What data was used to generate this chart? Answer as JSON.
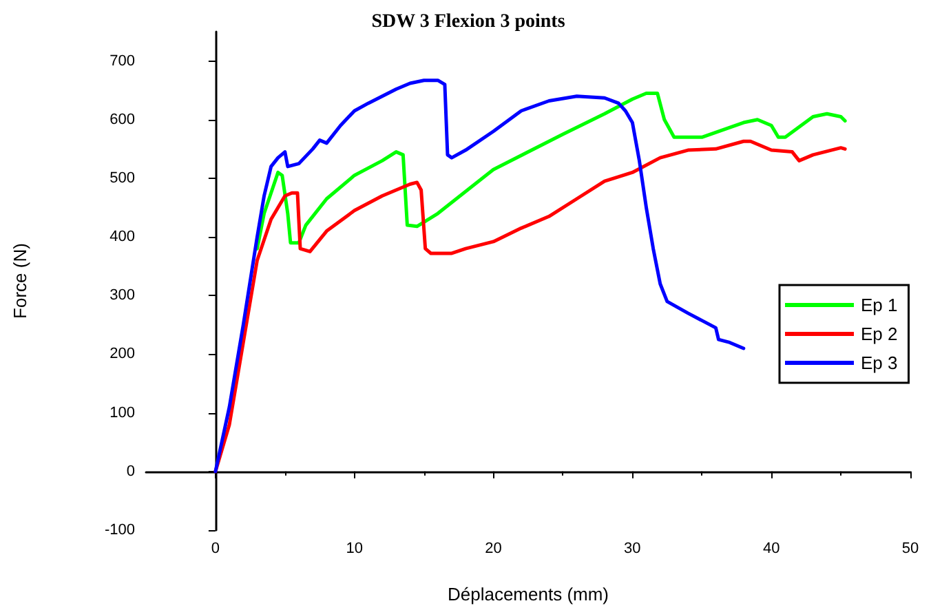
{
  "chart_data": {
    "type": "line",
    "title": "SDW 3 Flexion 3 points",
    "xlabel": "Déplacements (mm)",
    "ylabel": "Force (N)",
    "xlim": [
      -5,
      50
    ],
    "xticks": [
      0,
      10,
      20,
      30,
      40,
      50
    ],
    "ylim": [
      -100,
      750
    ],
    "yticks": [
      -100,
      0,
      100,
      200,
      300,
      400,
      500,
      600,
      700
    ],
    "legend": "right",
    "marker": "none",
    "line_style": "solid",
    "series": [
      {
        "name": "Ep 1",
        "color": "#00ff00",
        "x": [
          3,
          3.5,
          4.5,
          4.8,
          5.2,
          5.4,
          6,
          6.5,
          8,
          10,
          12,
          13,
          13.5,
          13.8,
          14.5,
          16,
          20,
          25,
          28,
          30,
          31,
          31.8,
          32.3,
          33,
          35,
          38,
          39,
          40,
          40.5,
          41,
          43,
          44,
          45,
          45.3
        ],
        "values": [
          380,
          440,
          510,
          505,
          440,
          390,
          390,
          420,
          465,
          505,
          530,
          545,
          540,
          420,
          418,
          440,
          515,
          575,
          610,
          635,
          645,
          645,
          600,
          570,
          570,
          595,
          600,
          590,
          570,
          570,
          605,
          610,
          605,
          598
        ]
      },
      {
        "name": "Ep 2",
        "color": "#ff0000",
        "x": [
          0,
          1,
          2,
          3,
          4,
          5,
          5.5,
          5.9,
          6.1,
          6.8,
          8,
          10,
          12,
          14,
          14.5,
          14.8,
          15.1,
          15.5,
          17,
          18,
          20,
          22,
          24,
          26,
          28,
          30,
          32,
          34,
          36,
          38,
          38.5,
          40,
          41.5,
          42,
          43,
          45,
          45.3
        ],
        "values": [
          0,
          80,
          220,
          360,
          430,
          470,
          475,
          475,
          380,
          375,
          410,
          445,
          470,
          490,
          493,
          480,
          380,
          372,
          372,
          380,
          392,
          415,
          435,
          465,
          495,
          510,
          535,
          548,
          550,
          563,
          563,
          548,
          545,
          530,
          540,
          552,
          550
        ]
      },
      {
        "name": "Ep 3",
        "color": "#0000ff",
        "x": [
          0,
          1,
          2,
          3,
          3.5,
          4,
          4.5,
          5,
          5.2,
          6,
          7,
          7.5,
          8,
          9,
          10,
          11,
          12,
          13,
          14,
          15,
          16,
          16.5,
          16.7,
          17,
          18,
          20,
          22,
          24,
          26,
          28,
          29,
          29.5,
          30,
          30.5,
          31,
          31.5,
          32,
          32.5,
          34,
          36,
          36.2,
          37,
          38
        ],
        "values": [
          0,
          110,
          250,
          400,
          470,
          520,
          535,
          545,
          520,
          525,
          550,
          565,
          560,
          590,
          615,
          628,
          640,
          652,
          662,
          667,
          667,
          660,
          540,
          535,
          548,
          580,
          615,
          632,
          640,
          637,
          628,
          615,
          595,
          530,
          450,
          380,
          320,
          290,
          270,
          245,
          225,
          220,
          210
        ]
      }
    ]
  }
}
